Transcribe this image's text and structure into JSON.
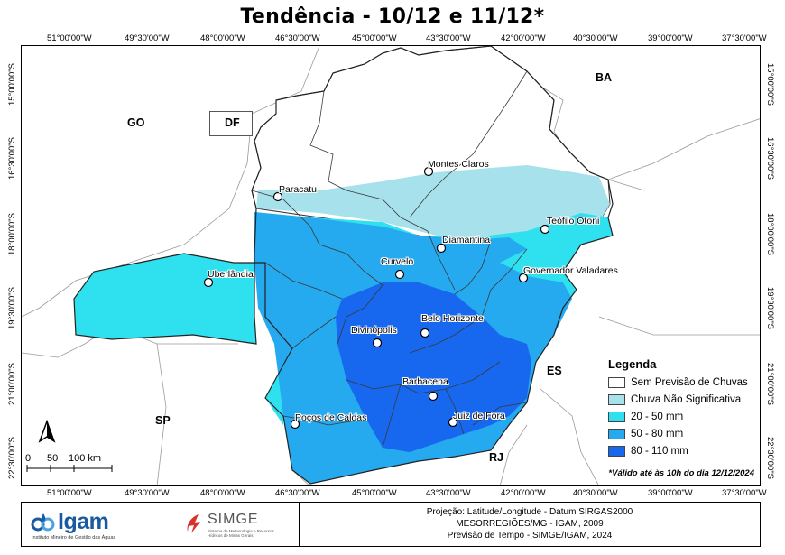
{
  "title": "Tendência - 10/12 e 11/12*",
  "longitude_ticks": [
    "51°00'00\"W",
    "49°30'00\"W",
    "48°00'00\"W",
    "46°30'00\"W",
    "45°00'00\"W",
    "43°30'00\"W",
    "42°00'00\"W",
    "40°30'00\"W",
    "39°00'00\"W",
    "37°30'00\"W"
  ],
  "latitude_ticks": [
    "15°00'00\"S",
    "16°30'00\"S",
    "18°00'00\"S",
    "19°30'00\"S",
    "21°00'00\"S",
    "22°30'00\"S"
  ],
  "states": {
    "go": "GO",
    "df": "DF",
    "ba": "BA",
    "sp": "SP",
    "es": "ES",
    "rj": "RJ"
  },
  "cities": {
    "montes_claros": "Montes Claros",
    "paracatu": "Paracatu",
    "teofilo_otoni": "Teófilo Otoni",
    "diamantina": "Diamantina",
    "curvelo": "Curvelo",
    "governador_valadares": "Governador Valadares",
    "uberlandia": "Uberlândia",
    "belo_horizonte": "Belo Horizonte",
    "divinopolis": "Divinópolis",
    "barbacena": "Barbacena",
    "pocos_de_caldas": "Poços de Caldas",
    "juiz_de_fora": "Juiz de Fora"
  },
  "legend": {
    "title": "Legenda",
    "items": [
      {
        "label": "Sem Previsão de Chuvas",
        "color": "#ffffff"
      },
      {
        "label": "Chuva Não Significativa",
        "color": "#a6e1ec"
      },
      {
        "label": "20 - 50 mm",
        "color": "#2fe0ef"
      },
      {
        "label": "50 - 80 mm",
        "color": "#25a9ef"
      },
      {
        "label": "80 - 110 mm",
        "color": "#1768ee"
      }
    ]
  },
  "validity": "*Válido até às 10h do dia 12/12/2024",
  "scale": {
    "labels": [
      "0",
      "50",
      "100 km"
    ]
  },
  "north_label": "N",
  "footer": {
    "igam_name": "Igam",
    "igam_subtitle": "Instituto Mineiro de Gestão das Águas",
    "simge_name": "SIMGE",
    "simge_subtitle": "Sistema de Meteorologia e Recursos Hídricos de Minas Gerais",
    "credits": [
      "Projeção: Latitude/Longitude - Datum SIRGAS2000",
      "MESORREGIÕES/MG - IGAM, 2009",
      "Previsão de Tempo - SIMGE/IGAM, 2024"
    ]
  }
}
